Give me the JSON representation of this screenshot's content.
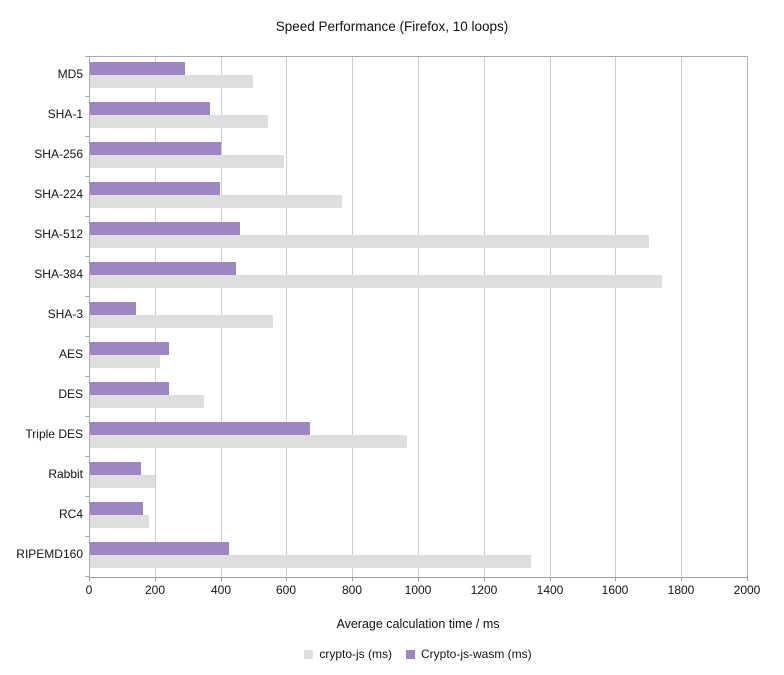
{
  "title": "Speed Performance (Firefox, 10 loops)",
  "chart_data": {
    "type": "bar",
    "orientation": "horizontal",
    "title": "Speed Performance (Firefox, 10 loops)",
    "xlabel": "Average calculation time / ms",
    "ylabel": "",
    "xlim": [
      0,
      2000
    ],
    "xticks": [
      0,
      200,
      400,
      600,
      800,
      1000,
      1200,
      1400,
      1600,
      1800,
      2000
    ],
    "grid": true,
    "legend_position": "bottom",
    "categories": [
      "MD5",
      "SHA-1",
      "SHA-256",
      "SHA-224",
      "SHA-512",
      "SHA-384",
      "SHA-3",
      "AES",
      "DES",
      "Triple DES",
      "Rabbit",
      "RC4",
      "RIPEMD160"
    ],
    "series": [
      {
        "name": "crypto-js (ms)",
        "color": "#dedede",
        "values": [
          495,
          540,
          590,
          765,
          1700,
          1740,
          555,
          212,
          345,
          965,
          197,
          178,
          1340
        ]
      },
      {
        "name": "Crypto-js-wasm (ms)",
        "color": "#9c87c4",
        "values": [
          290,
          365,
          397,
          394,
          455,
          445,
          140,
          240,
          240,
          670,
          155,
          160,
          422
        ]
      }
    ],
    "colors": {
      "grid": "#cccccc",
      "axis": "#9e9e9e",
      "frame": "#ababab",
      "text": "#141414"
    }
  }
}
